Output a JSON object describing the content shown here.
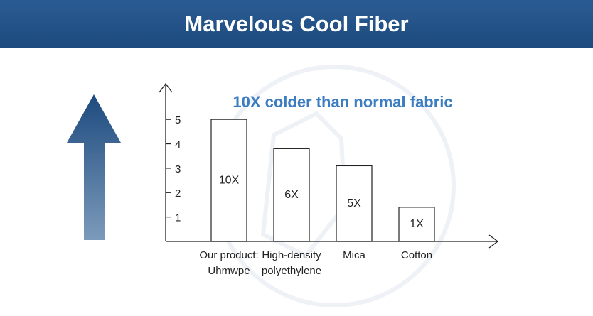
{
  "chart_data": {
    "type": "bar",
    "title": "Marvelous Cool Fiber",
    "subtitle": "10X colder than normal fabric",
    "categories": [
      "Our product:\nUhmwpe",
      "High-density\npolyethylene",
      "Mica",
      "Cotton"
    ],
    "values": [
      5,
      3.8,
      3.1,
      1.4
    ],
    "bar_texts": [
      "10X",
      "6X",
      "5X",
      "1X"
    ],
    "color": "#ffffff",
    "ylim": [
      0,
      6.4
    ],
    "yticks": [
      1,
      2,
      3,
      4,
      5
    ]
  }
}
